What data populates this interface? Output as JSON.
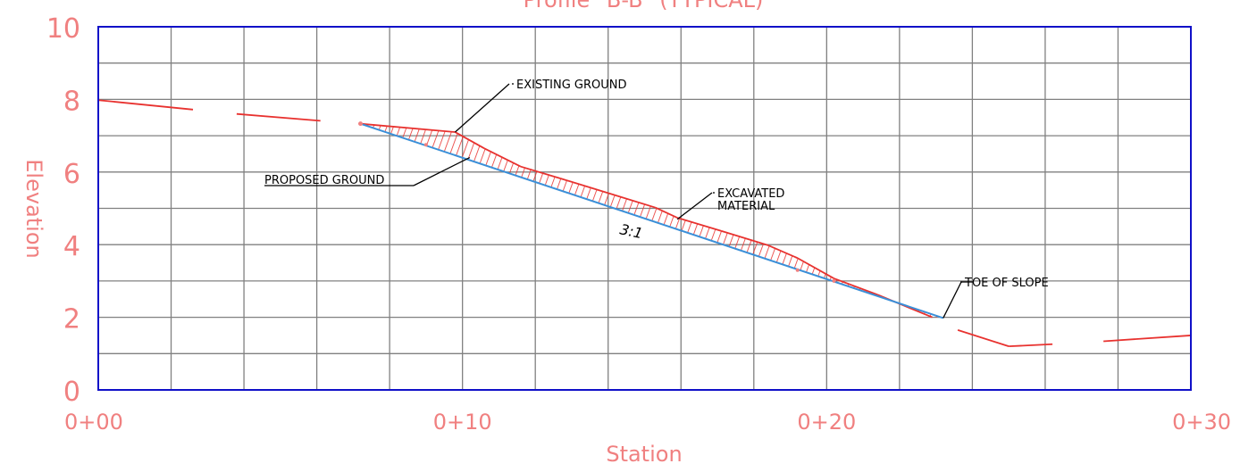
{
  "chart_data": {
    "type": "line",
    "title": "Profile \"B-B\" (TYPICAL)",
    "xlabel": "Station",
    "ylabel": "Elevation",
    "xlim": [
      0,
      30
    ],
    "ylim": [
      0,
      10
    ],
    "x_ticks": [
      0,
      10,
      20,
      30
    ],
    "x_tick_labels": [
      "0+00",
      "0+10",
      "0+20",
      "0+30"
    ],
    "y_ticks": [
      0,
      2,
      4,
      6,
      8,
      10
    ],
    "y_tick_labels": [
      "0",
      "2",
      "4",
      "6",
      "8",
      "10"
    ],
    "grid": true,
    "series": [
      {
        "name": "EXISTING GROUND",
        "color": "#e8322f",
        "points": [
          [
            0,
            7.98
          ],
          [
            2.6,
            7.72
          ],
          [
            3.8,
            7.6
          ],
          [
            6.1,
            7.41
          ],
          [
            7.2,
            7.33
          ],
          [
            9.8,
            7.1
          ],
          [
            10.6,
            6.65
          ],
          [
            11.6,
            6.15
          ],
          [
            12.7,
            5.82
          ],
          [
            14.0,
            5.42
          ],
          [
            15.3,
            5.02
          ],
          [
            15.9,
            4.74
          ],
          [
            17.1,
            4.38
          ],
          [
            18.4,
            3.98
          ],
          [
            19.2,
            3.63
          ],
          [
            20.2,
            3.07
          ],
          [
            21.4,
            2.62
          ],
          [
            22.9,
            2.0
          ],
          [
            23.6,
            1.65
          ],
          [
            25.0,
            1.2
          ],
          [
            26.2,
            1.26
          ],
          [
            27.6,
            1.34
          ],
          [
            30.0,
            1.5
          ]
        ],
        "gaps": [
          [
            2.6,
            3.8
          ],
          [
            6.1,
            7.2
          ],
          [
            23.0,
            23.6
          ],
          [
            25.8,
            26.2
          ],
          [
            26.4,
            27.6
          ]
        ]
      },
      {
        "name": "PROPOSED GROUND",
        "color": "#3a8fd8",
        "points": [
          [
            7.2,
            7.33
          ],
          [
            23.2,
            1.98
          ]
        ],
        "slope_label": "3:1"
      }
    ],
    "annotations": [
      {
        "text": "EXISTING GROUND",
        "target": [
          9.8,
          7.1
        ]
      },
      {
        "text": "PROPOSED GROUND",
        "target": [
          10.2,
          6.4
        ]
      },
      {
        "text": "EXCAVATED\nMATERIAL",
        "target": [
          15.9,
          4.7
        ]
      },
      {
        "text": "TOE OF SLOPE",
        "target": [
          23.2,
          1.98
        ]
      }
    ],
    "shaded_region": {
      "name": "EXCAVATED MATERIAL",
      "color": "#e8322f",
      "pattern": "hatch"
    },
    "colors": {
      "frame": "#1010c8",
      "grid": "#808080",
      "text": "#f08080"
    }
  }
}
